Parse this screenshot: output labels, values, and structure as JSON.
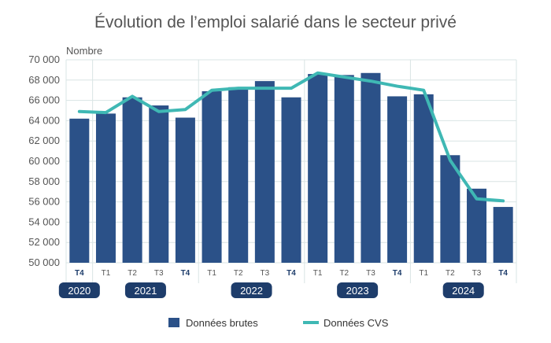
{
  "colors": {
    "bar": "#2b5188",
    "line": "#3fb8b4",
    "grid": "#d9e4e4",
    "year_badge": "#1e3d6b"
  },
  "chart_data": {
    "type": "bar",
    "title": "Évolution de l’emploi salarié dans le secteur privé",
    "ylabel": "Nombre",
    "xlabel": "",
    "ylim": [
      50000,
      70000
    ],
    "yticks": [
      50000,
      52000,
      54000,
      56000,
      58000,
      60000,
      62000,
      64000,
      66000,
      68000,
      70000
    ],
    "ytick_labels": [
      "50 000",
      "52 000",
      "54 000",
      "56 000",
      "58 000",
      "60 000",
      "62 000",
      "64 000",
      "66 000",
      "68 000",
      "70 000"
    ],
    "categories": [
      "T4",
      "T1",
      "T2",
      "T3",
      "T4",
      "T1",
      "T2",
      "T3",
      "T4",
      "T1",
      "T2",
      "T3",
      "T4",
      "T1",
      "T2",
      "T3",
      "T4"
    ],
    "bold_categories": [
      0,
      4,
      8,
      12,
      16
    ],
    "years": [
      {
        "label": "2020",
        "start": 0,
        "end": 0
      },
      {
        "label": "2021",
        "start": 1,
        "end": 4
      },
      {
        "label": "2022",
        "start": 5,
        "end": 8
      },
      {
        "label": "2023",
        "start": 9,
        "end": 12
      },
      {
        "label": "2024",
        "start": 13,
        "end": 16
      }
    ],
    "series": [
      {
        "name": "Données brutes",
        "kind": "bar",
        "values": [
          64200,
          64700,
          66300,
          65500,
          64300,
          66900,
          67300,
          67900,
          66300,
          68600,
          68500,
          68700,
          66400,
          66600,
          60600,
          57300,
          55500
        ]
      },
      {
        "name": "Données CVS",
        "kind": "line",
        "values": [
          64900,
          64800,
          66400,
          64900,
          65100,
          67000,
          67200,
          67200,
          67200,
          68700,
          68300,
          67900,
          67400,
          67000,
          60100,
          56300,
          56100
        ]
      }
    ],
    "grid": true,
    "legend": "bottom"
  }
}
